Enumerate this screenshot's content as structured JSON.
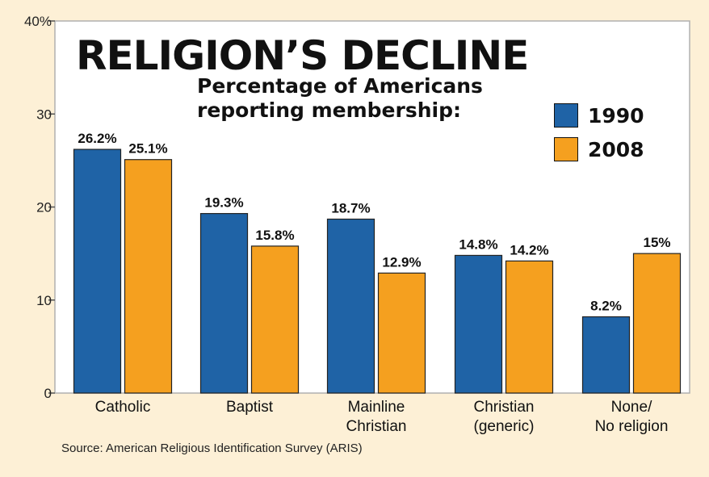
{
  "chart_data": {
    "type": "bar",
    "title": "RELIGION’S DECLINE",
    "subtitle": "Percentage of Americans reporting membership:",
    "categories": [
      "Catholic",
      "Baptist",
      "Mainline Christian",
      "Christian (generic)",
      "None/ No religion"
    ],
    "category_lines": [
      [
        "Catholic"
      ],
      [
        "Baptist"
      ],
      [
        "Mainline",
        "Christian"
      ],
      [
        "Christian",
        "(generic)"
      ],
      [
        "None/",
        "No religion"
      ]
    ],
    "series": [
      {
        "name": "1990",
        "color": "#1f63a6",
        "values": [
          26.2,
          19.3,
          18.7,
          14.8,
          8.2
        ],
        "labels": [
          "26.2%",
          "19.3%",
          "18.7%",
          "14.8%",
          "8.2%"
        ]
      },
      {
        "name": "2008",
        "color": "#f5a01f",
        "values": [
          25.1,
          15.8,
          12.9,
          14.2,
          15
        ],
        "labels": [
          "25.1%",
          "15.8%",
          "12.9%",
          "14.2%",
          "15%"
        ]
      }
    ],
    "y_ticks": [
      0,
      10,
      20,
      30,
      40
    ],
    "y_tick_labels": [
      "0",
      "10",
      "20",
      "30",
      "40%"
    ],
    "ylim": [
      0,
      40
    ],
    "grid": false,
    "legend_position": "top-right",
    "source": "Source: American Religious Identification Survey (ARIS)"
  }
}
